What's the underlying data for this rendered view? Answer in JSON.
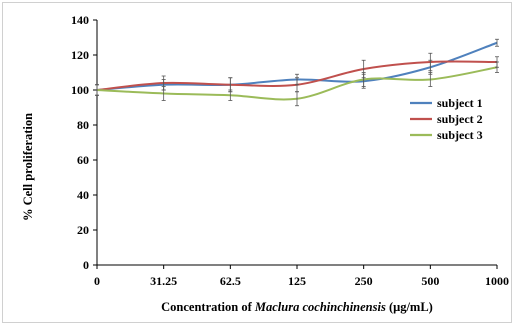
{
  "chart_data": {
    "type": "line",
    "ylabel": "% Cell proliferation",
    "xlabel_parts": [
      {
        "text": "Concentration of ",
        "italic": false
      },
      {
        "text": "Maclura cochinchinensis",
        "italic": true
      },
      {
        "text": " (μg/mL)",
        "italic": false
      }
    ],
    "categories": [
      "0",
      "31.25",
      "62.5",
      "125",
      "250",
      "500",
      "1000"
    ],
    "ylim": [
      0,
      140
    ],
    "yticks": [
      0,
      20,
      40,
      60,
      80,
      100,
      120,
      140
    ],
    "grid": false,
    "legend_position": "right",
    "series": [
      {
        "name": "subject 1",
        "color": "#4f81bd",
        "values": [
          100,
          103,
          103,
          106,
          105,
          113,
          127
        ],
        "errors": [
          3,
          3,
          4,
          3,
          4,
          4,
          2
        ]
      },
      {
        "name": "subject 2",
        "color": "#c0504d",
        "values": [
          100,
          104,
          103,
          103,
          112,
          116,
          116
        ],
        "errors": [
          3,
          4,
          4,
          4,
          5,
          5,
          3
        ]
      },
      {
        "name": "subject 3",
        "color": "#9bbb59",
        "values": [
          100,
          98,
          97,
          95,
          106,
          106,
          113
        ],
        "errors": [
          3,
          4,
          3,
          4,
          4,
          4,
          3
        ]
      }
    ]
  }
}
